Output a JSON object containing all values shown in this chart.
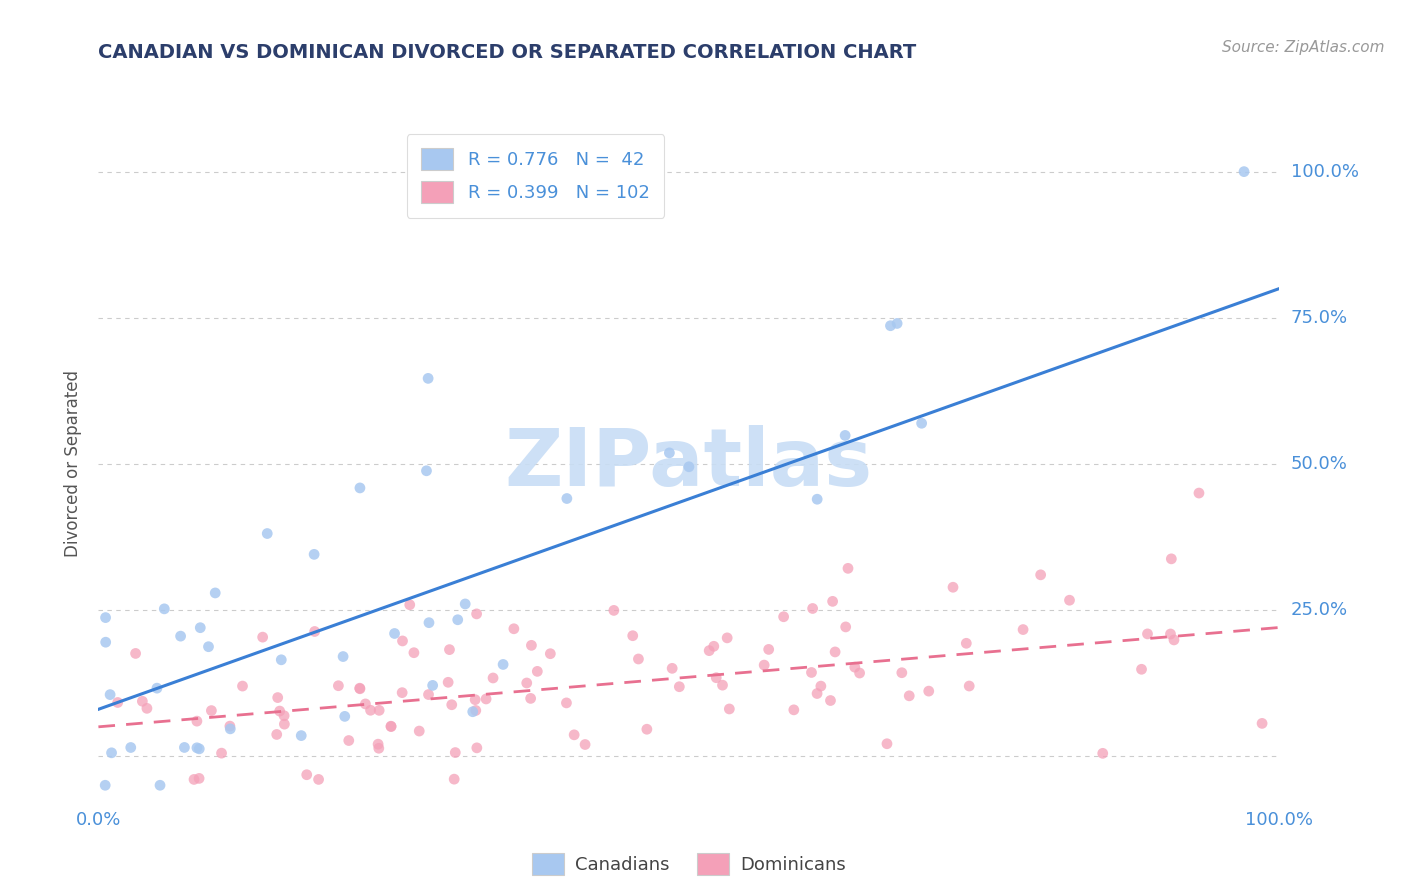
{
  "title": "CANADIAN VS DOMINICAN DIVORCED OR SEPARATED CORRELATION CHART",
  "source": "Source: ZipAtlas.com",
  "ylabel": "Divorced or Separated",
  "canadian_color": "#a8c8f0",
  "dominican_color": "#f4a0b8",
  "canadian_line_color": "#3a7fd5",
  "dominican_line_color": "#e87090",
  "watermark_color": "#c8ddf5",
  "background_color": "#ffffff",
  "grid_color": "#cccccc",
  "title_color": "#2c3e6b",
  "axis_label_color": "#4a90d9",
  "legend_r_n_color": "#4a90d9",
  "xlim": [
    0.0,
    1.0
  ],
  "ylim": [
    -0.08,
    1.08
  ],
  "ca_line_x0": 0.0,
  "ca_line_y0": 0.08,
  "ca_line_x1": 1.0,
  "ca_line_y1": 0.8,
  "do_line_x0": 0.0,
  "do_line_y0": 0.05,
  "do_line_x1": 1.0,
  "do_line_y1": 0.22,
  "ytick_positions": [
    0.0,
    0.25,
    0.5,
    0.75,
    1.0
  ],
  "ytick_labels": [
    "",
    "25.0%",
    "50.0%",
    "75.0%",
    "100.0%"
  ],
  "xtick_positions": [
    0.0,
    1.0
  ],
  "xtick_labels": [
    "0.0%",
    "100.0%"
  ]
}
